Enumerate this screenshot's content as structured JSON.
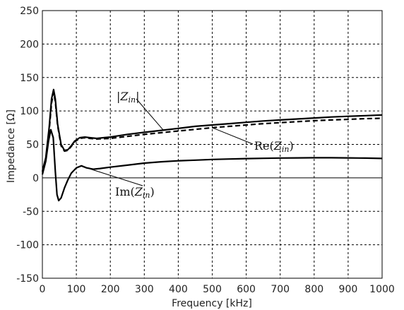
{
  "chart_data": {
    "type": "line",
    "xlabel": "Frequency [kHz]",
    "ylabel": "Impedance [Ω]",
    "xlim": [
      0,
      1000
    ],
    "ylim": [
      -150,
      250
    ],
    "x_ticks": [
      "0",
      "100",
      "200",
      "300",
      "400",
      "500",
      "600",
      "700",
      "800",
      "900",
      "1000"
    ],
    "y_ticks": [
      "250",
      "200",
      "150",
      "100",
      "50",
      "0",
      "-50",
      "-100",
      "-150"
    ],
    "grid": true,
    "series": [
      {
        "style": "solid",
        "x": [
          0,
          10,
          20,
          27,
          33,
          38,
          45,
          55,
          65,
          75,
          85,
          95,
          110,
          125,
          140,
          160,
          180,
          200,
          250,
          300,
          350,
          400,
          450,
          500,
          550,
          600,
          650,
          700,
          750,
          800,
          850,
          900,
          950,
          1000
        ],
        "y": [
          10,
          30,
          75,
          118,
          132,
          118,
          80,
          50,
          41,
          42,
          48,
          55,
          60,
          61,
          60,
          59,
          60,
          61,
          65,
          68,
          71,
          74,
          77,
          79,
          81,
          83,
          85,
          86.5,
          88,
          89.5,
          91,
          92,
          93,
          94
        ]
      },
      {
        "style": "dashed",
        "x": [
          0,
          10,
          20,
          27,
          33,
          38,
          45,
          55,
          65,
          75,
          85,
          95,
          110,
          125,
          140,
          160,
          180,
          200,
          250,
          300,
          350,
          400,
          450,
          500,
          550,
          600,
          650,
          700,
          750,
          800,
          850,
          900,
          950,
          1000
        ],
        "y": [
          8,
          27,
          70,
          112,
          128,
          114,
          78,
          48,
          40,
          41,
          47,
          54,
          59,
          60,
          59,
          58,
          58.5,
          59,
          62,
          65,
          67.5,
          70,
          72.5,
          75,
          77,
          79,
          81,
          82.5,
          84,
          85.5,
          86.5,
          87.5,
          88.5,
          89
        ]
      },
      {
        "style": "solid",
        "x": [
          0,
          10,
          18,
          25,
          32,
          38,
          43,
          48,
          55,
          65,
          75,
          85,
          100,
          115,
          130,
          150,
          170,
          200,
          250,
          300,
          350,
          400,
          450,
          500,
          550,
          600,
          650,
          700,
          750,
          800,
          850,
          900,
          950,
          1000
        ],
        "y": [
          5,
          25,
          55,
          72,
          60,
          10,
          -25,
          -34,
          -30,
          -15,
          -3,
          7,
          15,
          18,
          15,
          13,
          14,
          16,
          19,
          22,
          24,
          25.5,
          26.5,
          27.5,
          28.2,
          28.8,
          29.2,
          29.6,
          29.8,
          30,
          30,
          29.8,
          29.5,
          29
        ]
      }
    ],
    "annotations": [
      {
        "prefix": "|",
        "main": "Z",
        "sub": "in",
        "suffix": "|"
      },
      {
        "prefix": "Re(",
        "main": "Z",
        "sub": "in",
        "suffix": ")"
      },
      {
        "prefix": "Im(",
        "main": "Z",
        "sub": "in",
        "suffix": ")"
      }
    ]
  }
}
